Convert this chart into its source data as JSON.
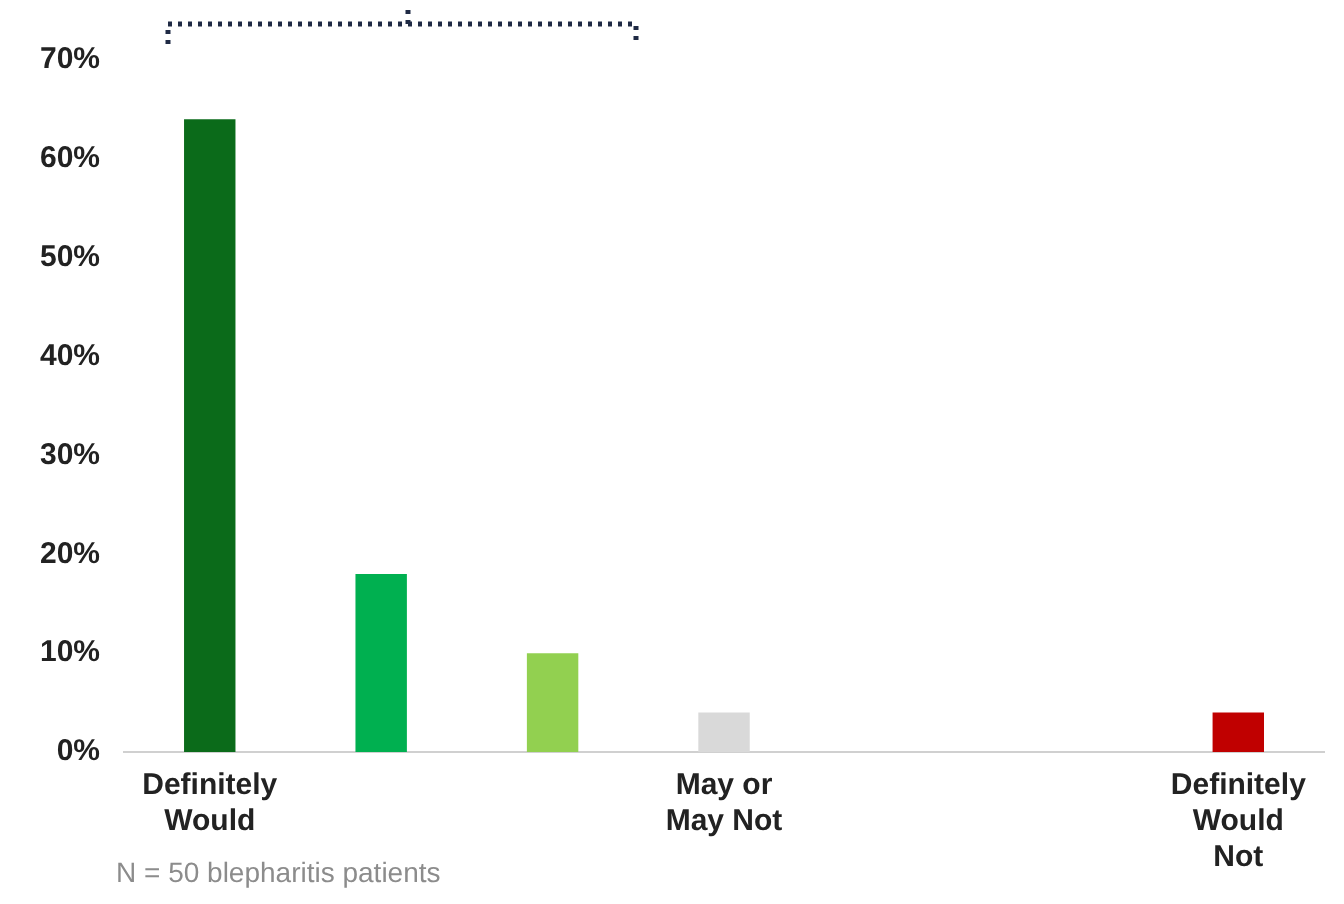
{
  "chart_data": {
    "type": "bar",
    "categories": [
      "Definitely Would",
      null,
      null,
      "May or May Not",
      null,
      null,
      "Definitely Would Not"
    ],
    "values": [
      64,
      18,
      10,
      4,
      0,
      0,
      4
    ],
    "colors": [
      "#0b6b1a",
      "#00b050",
      "#92d050",
      "#d9d9d9",
      "#d9d9d9",
      "#d9d9d9",
      "#c00000"
    ],
    "ylim": [
      0,
      70
    ],
    "yticks": [
      {
        "value": 0,
        "label": "0%"
      },
      {
        "value": 10,
        "label": "10%"
      },
      {
        "value": 20,
        "label": "20%"
      },
      {
        "value": 30,
        "label": "30%"
      },
      {
        "value": 40,
        "label": "40%"
      },
      {
        "value": 50,
        "label": "50%"
      },
      {
        "value": 60,
        "label": "60%"
      },
      {
        "value": 70,
        "label": "70%"
      }
    ],
    "grid": false,
    "legend": false,
    "annotations": [
      "N = 50 blepharitis patients"
    ]
  }
}
